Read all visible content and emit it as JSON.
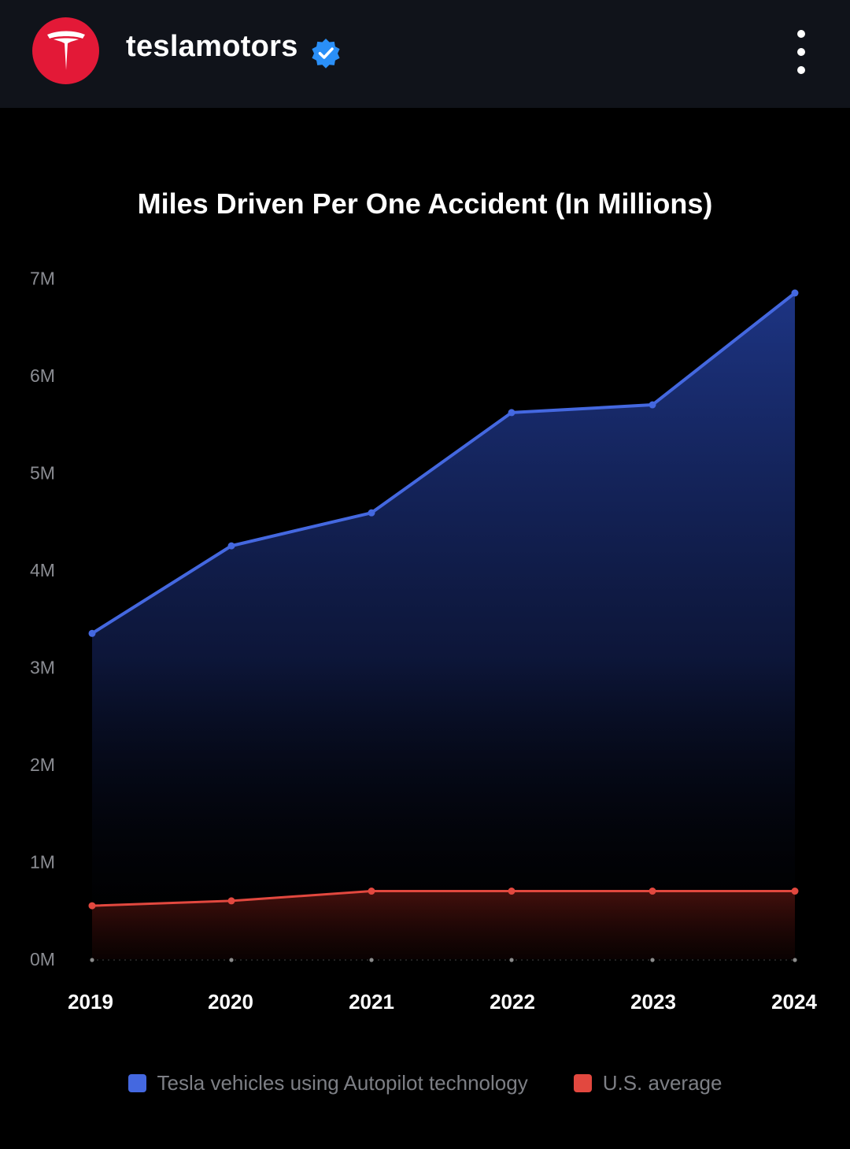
{
  "header": {
    "username": "teslamotors",
    "logo_icon": "tesla-t-logo",
    "verified_icon": "verified-badge-icon",
    "more_icon": "more-vertical-icon",
    "brand_color": "#e31937"
  },
  "chart_data": {
    "type": "area",
    "title": "Miles Driven Per One Accident (In Millions)",
    "x": [
      "2019",
      "2020",
      "2021",
      "2022",
      "2023",
      "2024"
    ],
    "y_ticks": [
      "0M",
      "1M",
      "2M",
      "3M",
      "4M",
      "5M",
      "6M",
      "7M"
    ],
    "ylim": [
      0,
      7
    ],
    "grid": false,
    "legend_position": "bottom",
    "series": [
      {
        "name": "Tesla vehicles using Autopilot technology",
        "color": "#4468e0",
        "values": [
          3.35,
          4.25,
          4.59,
          5.62,
          5.7,
          6.85
        ]
      },
      {
        "name": "U.S. average",
        "color": "#e2483f",
        "values": [
          0.55,
          0.6,
          0.7,
          0.7,
          0.7,
          0.7
        ]
      }
    ]
  }
}
